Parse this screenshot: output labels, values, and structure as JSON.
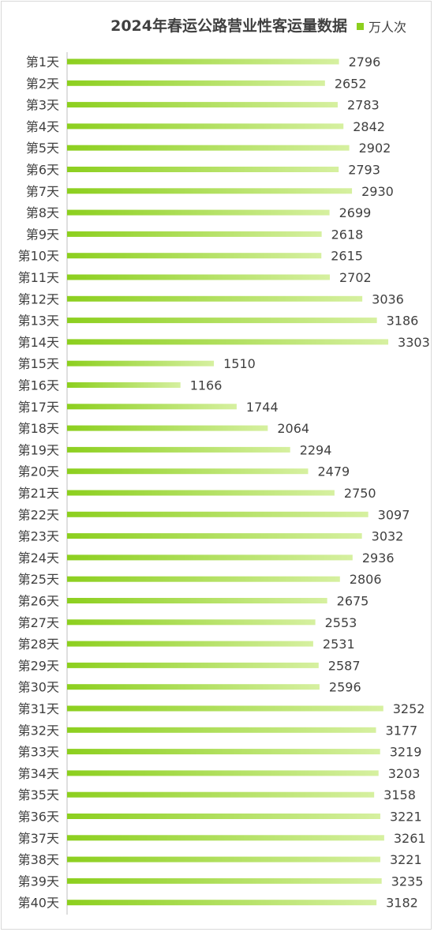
{
  "chart_data": {
    "type": "bar",
    "orientation": "horizontal",
    "title": "2024年春运公路营业性客运量数据",
    "legend": {
      "position": "top-right",
      "entries": [
        "万人次"
      ]
    },
    "categories": [
      "第1天",
      "第2天",
      "第3天",
      "第4天",
      "第5天",
      "第6天",
      "第7天",
      "第8天",
      "第9天",
      "第10天",
      "第11天",
      "第12天",
      "第13天",
      "第14天",
      "第15天",
      "第16天",
      "第17天",
      "第18天",
      "第19天",
      "第20天",
      "第21天",
      "第22天",
      "第23天",
      "第24天",
      "第25天",
      "第26天",
      "第27天",
      "第28天",
      "第29天",
      "第30天",
      "第31天",
      "第32天",
      "第33天",
      "第34天",
      "第35天",
      "第36天",
      "第37天",
      "第38天",
      "第39天",
      "第40天"
    ],
    "series": [
      {
        "name": "万人次",
        "values": [
          2796,
          2652,
          2783,
          2842,
          2902,
          2793,
          2930,
          2699,
          2618,
          2615,
          2702,
          3036,
          3186,
          3303,
          1510,
          1166,
          1744,
          2064,
          2294,
          2479,
          2750,
          3097,
          3032,
          2936,
          2806,
          2675,
          2553,
          2531,
          2587,
          2596,
          3252,
          3177,
          3219,
          3203,
          3158,
          3221,
          3261,
          3221,
          3235,
          3182
        ]
      }
    ],
    "xlim": [
      0,
      3400
    ],
    "grid": false,
    "data_labels": true,
    "colors": {
      "bar_start": "#8ccf1e",
      "bar_end": "#d6f0a0",
      "text": "#404040",
      "axis": "#bfbfbf"
    }
  }
}
